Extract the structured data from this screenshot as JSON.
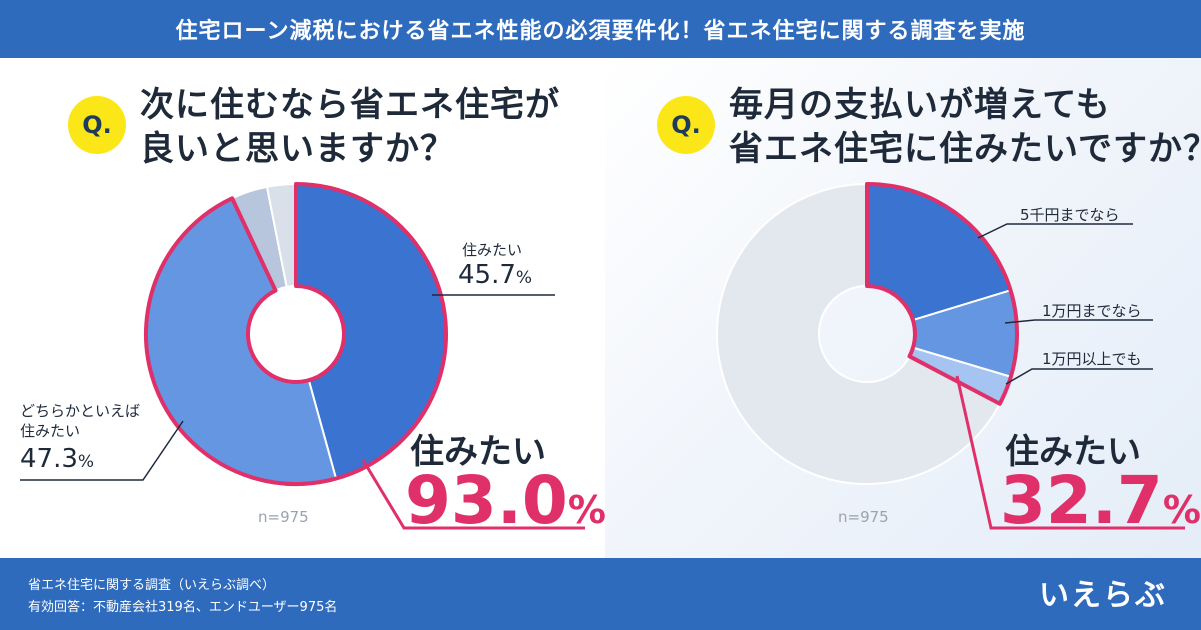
{
  "header": {
    "title": "住宅ローン減税における省エネ性能の必須要件化！省エネ住宅に関する調査を実施"
  },
  "left": {
    "q_badge": "Q.",
    "question_line1": "次に住むなら省エネ住宅が",
    "question_line2": "良いと思いますか？",
    "label_a_title": "住みたい",
    "label_a_value": "45.7",
    "label_b_title_line1": "どちらかといえば",
    "label_b_title_line2": "住みたい",
    "label_b_value": "47.3",
    "pct_sign": "%",
    "n_label": "n=975",
    "result_title": "住みたい",
    "result_value": "93.0"
  },
  "right": {
    "q_badge": "Q.",
    "question_line1": "毎月の支払いが増えても",
    "question_line2": "省エネ住宅に住みたいですか？",
    "label_1": "5千円までなら",
    "label_2": "1万円までなら",
    "label_3": "1万円以上でも",
    "n_label": "n=975",
    "result_title": "住みたい",
    "result_value": "32.7",
    "pct_sign": "%"
  },
  "footer": {
    "line1": "省エネ住宅に関する調査（いえらぶ調べ）",
    "line2": "有効回答：不動産会社319名、エンドユーザー975名",
    "logo": "いえらぶ"
  },
  "colors": {
    "header_bg": "#2f6bbd",
    "highlight": "#e0306a",
    "series_dark": "#3a73d0",
    "series_mid": "#6596e1",
    "series_light": "#a6c4f2",
    "other_a": "#b7c6dc",
    "other_b": "#d9e0ea",
    "other_gray": "#e3e7ee"
  },
  "chart_data": [
    {
      "type": "pie",
      "title": "次に住むなら省エネ住宅が良いと思いますか？",
      "n": 975,
      "categories": [
        "住みたい",
        "どちらかといえば住みたい",
        "other_1",
        "other_2"
      ],
      "values": [
        45.7,
        47.3,
        3.9,
        3.1
      ],
      "highlight_total": 93.0
    },
    {
      "type": "pie",
      "title": "毎月の支払いが増えても省エネ住宅に住みたいですか？",
      "n": 975,
      "categories": [
        "5千円までなら",
        "1万円までなら",
        "1万円以上でも",
        "other"
      ],
      "values": [
        20.3,
        9.3,
        3.1,
        67.3
      ],
      "highlight_total": 32.7
    }
  ]
}
